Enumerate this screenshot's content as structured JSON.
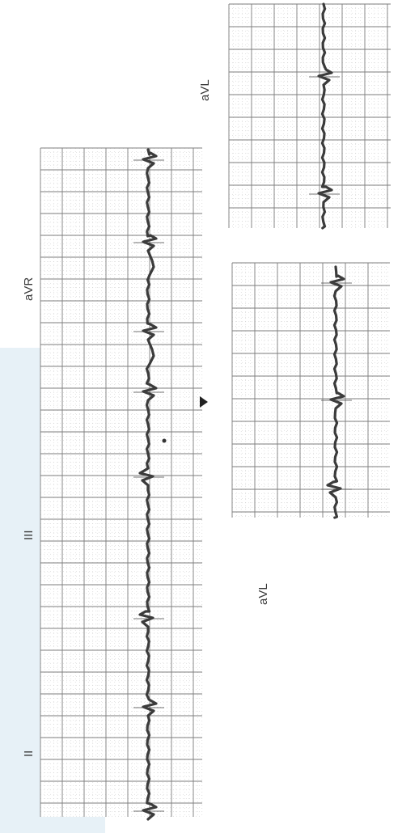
{
  "figure": {
    "orientation": "rotated-90-ccw",
    "colors": {
      "paper": "#ffffff",
      "grid": "#7d7d7d",
      "trace": "#3b3b3b",
      "background_band": "#e7f1f7"
    }
  },
  "strips": [
    {
      "id": "left",
      "labels": [
        {
          "key": "II",
          "text": "II"
        },
        {
          "key": "III",
          "text": "III"
        },
        {
          "key": "aVR",
          "text": "aVR"
        }
      ]
    },
    {
      "id": "right-lower",
      "labels": [
        {
          "key": "aVL",
          "text": "aVL"
        }
      ]
    },
    {
      "id": "right-upper",
      "labels": [
        {
          "key": "aVL",
          "text": "aVL"
        }
      ]
    }
  ]
}
